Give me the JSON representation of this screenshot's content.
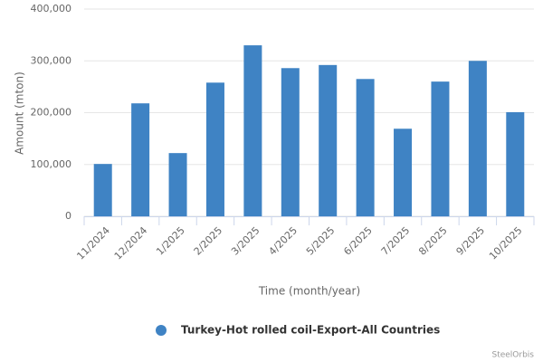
{
  "chart_data": {
    "type": "bar",
    "y_axis_label": "Amount (mton)",
    "x_axis_label": "Time (month/year)",
    "credits": "SteelOrbis",
    "categories": [
      "11/2024",
      "12/2024",
      "1/2025",
      "2/2025",
      "3/2025",
      "4/2025",
      "5/2025",
      "6/2025",
      "7/2025",
      "8/2025",
      "9/2025",
      "10/2025"
    ],
    "series": [
      {
        "name": "Turkey-Hot rolled coil-Export-All Countries",
        "color": "#3f83c4",
        "values": [
          101000,
          218000,
          122000,
          258000,
          330000,
          286000,
          292000,
          265000,
          169000,
          260000,
          300000,
          201000
        ]
      }
    ],
    "ylim": [
      0,
      400000
    ],
    "yticks": [
      0,
      {
        "value": 100000,
        "label": "100,000"
      },
      {
        "value": 200000,
        "label": "200,000"
      },
      {
        "value": 300000,
        "label": "300,000"
      },
      {
        "value": 400000,
        "label": "400,000"
      }
    ],
    "grid": true
  }
}
